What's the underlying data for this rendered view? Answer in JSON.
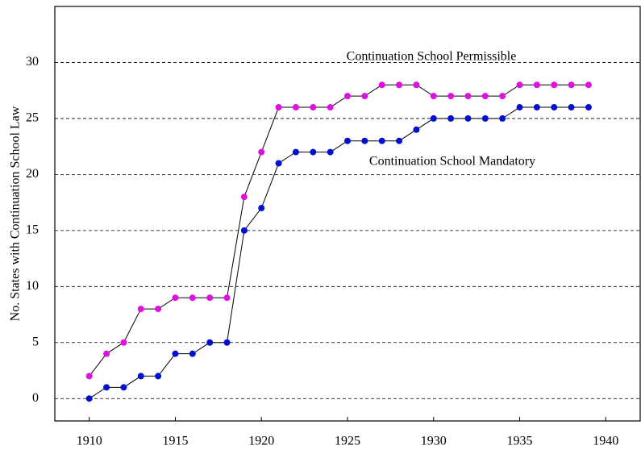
{
  "chart_data": {
    "type": "line",
    "y_label": "No. States with Continuation School Law",
    "x": [
      1910,
      1911,
      1912,
      1913,
      1914,
      1915,
      1916,
      1917,
      1918,
      1919,
      1920,
      1921,
      1922,
      1923,
      1924,
      1925,
      1926,
      1927,
      1928,
      1929,
      1930,
      1931,
      1932,
      1933,
      1934,
      1935,
      1936,
      1937,
      1938,
      1939
    ],
    "series": [
      {
        "name": "Continuation School Permissible",
        "color": "#e010e0",
        "values": [
          2,
          4,
          5,
          8,
          8,
          9,
          9,
          9,
          9,
          18,
          22,
          26,
          26,
          26,
          26,
          27,
          27,
          28,
          28,
          28,
          27,
          27,
          27,
          27,
          27,
          28,
          28,
          28,
          28,
          28
        ]
      },
      {
        "name": "Continuation School Mandatory",
        "color": "#0010d0",
        "values": [
          0,
          1,
          1,
          2,
          2,
          4,
          4,
          5,
          5,
          15,
          17,
          21,
          22,
          22,
          22,
          23,
          23,
          23,
          23,
          24,
          25,
          25,
          25,
          25,
          25,
          26,
          26,
          26,
          26,
          26
        ]
      }
    ],
    "line_color": "#000000",
    "xlim": [
      1908,
      1942
    ],
    "xticks": [
      1910,
      1915,
      1920,
      1925,
      1930,
      1935,
      1940
    ],
    "ylim": [
      -2,
      35
    ],
    "yticks": [
      0,
      5,
      10,
      15,
      20,
      25,
      30
    ],
    "grid": true
  }
}
